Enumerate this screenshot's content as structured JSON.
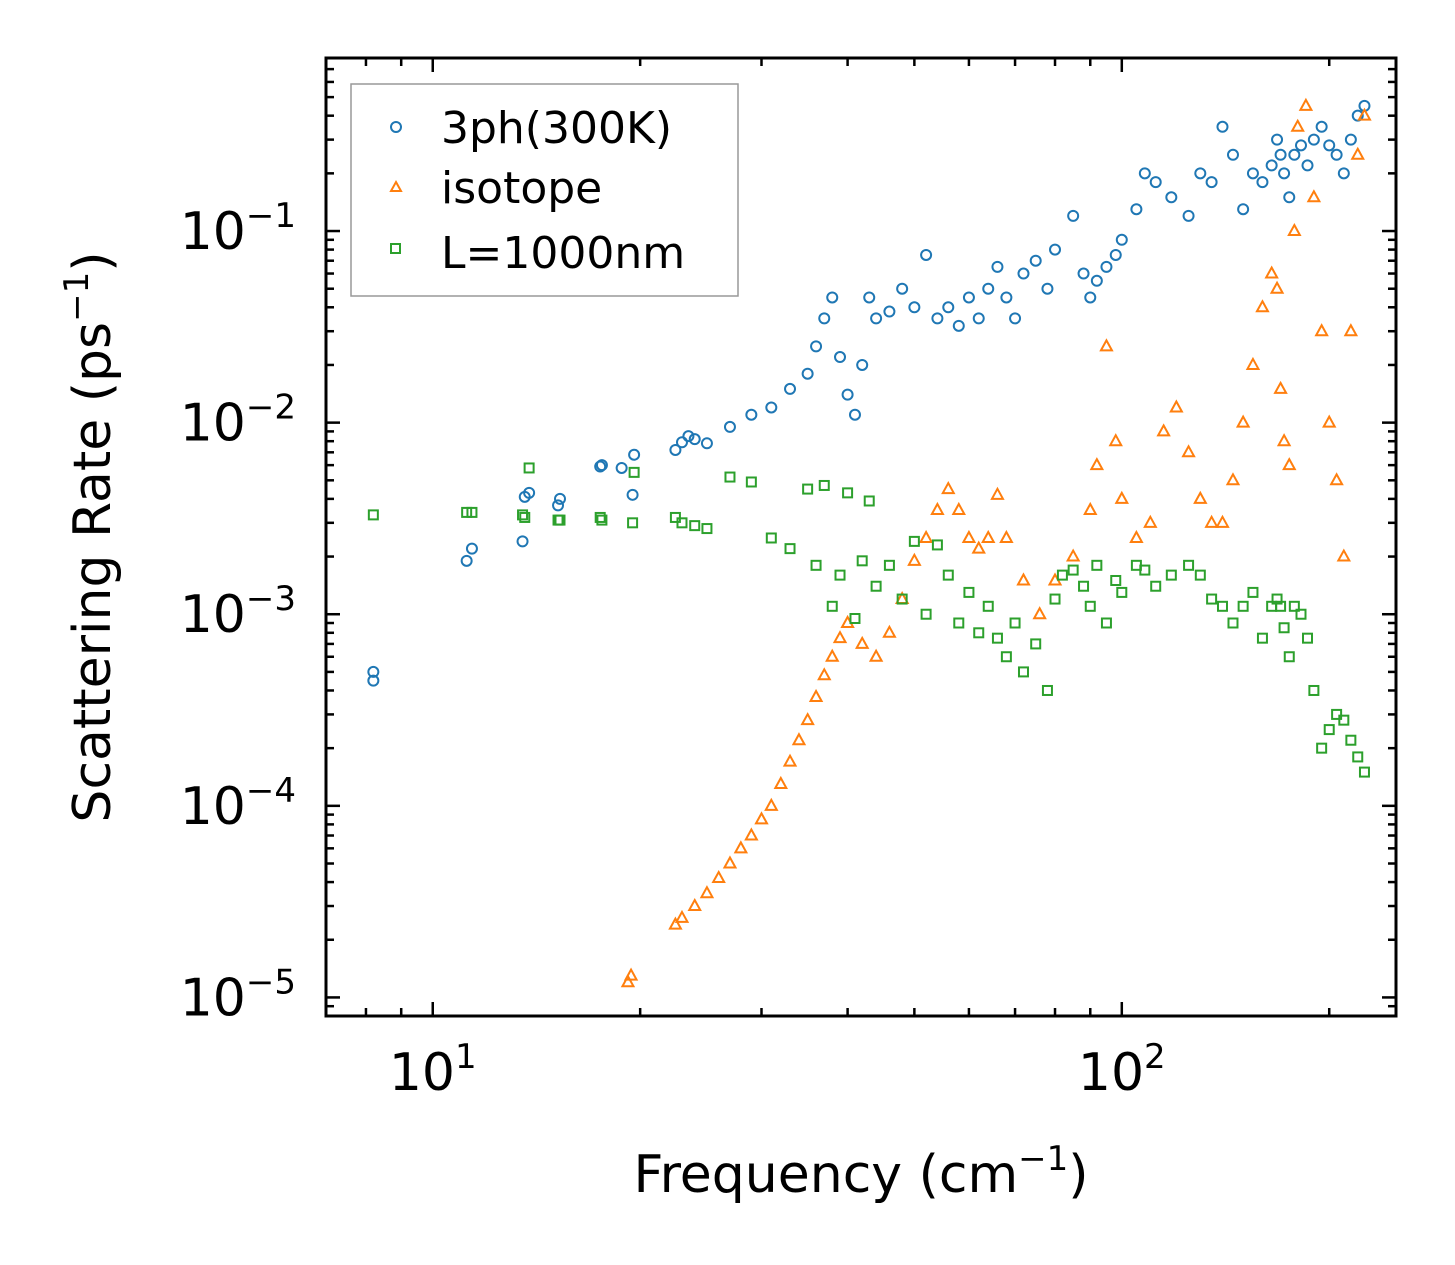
{
  "chart_data": {
    "type": "scatter",
    "xscale": "log",
    "yscale": "log",
    "xlim": [
      7,
      250
    ],
    "ylim": [
      8e-06,
      0.8
    ],
    "xlabel": {
      "text": "Frequency (cm",
      "sup": "−1",
      "close": ")"
    },
    "ylabel": {
      "text": "Scattering Rate (ps",
      "sup": "−1",
      "close": ")"
    },
    "x_ticks": [
      {
        "value": 10,
        "base": "10",
        "exp": "1"
      },
      {
        "value": 100,
        "base": "10",
        "exp": "2"
      }
    ],
    "y_ticks": [
      {
        "value": 0.1,
        "base": "10",
        "exp": "−1"
      },
      {
        "value": 0.01,
        "base": "10",
        "exp": "−2"
      },
      {
        "value": 0.001,
        "base": "10",
        "exp": "−3"
      },
      {
        "value": 0.0001,
        "base": "10",
        "exp": "−4"
      },
      {
        "value": 1e-05,
        "base": "10",
        "exp": "−5"
      }
    ],
    "legend_position": "top-left",
    "series": [
      {
        "name": "3ph(300K)",
        "marker": "circle",
        "color": "#1f77b4",
        "x": [
          8.2,
          8.2,
          11.2,
          11.4,
          13.5,
          13.6,
          13.8,
          15.2,
          15.3,
          17.5,
          17.6,
          18.8,
          19.5,
          19.6,
          22.5,
          23.0,
          23.5,
          24.0,
          25.0,
          27.0,
          29.0,
          31.0,
          33.0,
          35.0,
          36.0,
          37.0,
          38.0,
          39.0,
          40.0,
          41.0,
          42.0,
          43.0,
          44.0,
          46.0,
          48.0,
          50.0,
          52.0,
          54.0,
          56.0,
          58.0,
          60.0,
          62.0,
          64.0,
          66.0,
          68.0,
          70.0,
          72.0,
          75.0,
          78.0,
          80.0,
          85.0,
          88.0,
          90.0,
          92.0,
          95.0,
          98.0,
          100.0,
          105.0,
          108.0,
          112.0,
          118.0,
          125.0,
          130.0,
          135.0,
          140.0,
          145.0,
          150.0,
          155.0,
          160.0,
          165.0,
          168.0,
          170.0,
          172.0,
          175.0,
          178.0,
          182.0,
          186.0,
          190.0,
          195.0,
          200.0,
          205.0,
          210.0,
          215.0,
          220.0,
          225.0
        ],
        "y": [
          0.00045,
          0.0005,
          0.0019,
          0.0022,
          0.0024,
          0.0041,
          0.0043,
          0.0037,
          0.004,
          0.0059,
          0.006,
          0.0058,
          0.0042,
          0.0068,
          0.0072,
          0.0079,
          0.0085,
          0.0082,
          0.0078,
          0.0095,
          0.011,
          0.012,
          0.015,
          0.018,
          0.025,
          0.035,
          0.045,
          0.022,
          0.014,
          0.011,
          0.02,
          0.045,
          0.035,
          0.038,
          0.05,
          0.04,
          0.075,
          0.035,
          0.04,
          0.032,
          0.045,
          0.035,
          0.05,
          0.065,
          0.045,
          0.035,
          0.06,
          0.07,
          0.05,
          0.08,
          0.12,
          0.06,
          0.045,
          0.055,
          0.065,
          0.075,
          0.09,
          0.13,
          0.2,
          0.18,
          0.15,
          0.12,
          0.2,
          0.18,
          0.35,
          0.25,
          0.13,
          0.2,
          0.18,
          0.22,
          0.3,
          0.25,
          0.2,
          0.15,
          0.25,
          0.28,
          0.22,
          0.3,
          0.35,
          0.28,
          0.25,
          0.2,
          0.3,
          0.4,
          0.45
        ]
      },
      {
        "name": "isotope",
        "marker": "triangle",
        "color": "#ff7f0e",
        "x": [
          19.2,
          19.4,
          22.5,
          23.0,
          24.0,
          25.0,
          26.0,
          27.0,
          28.0,
          29.0,
          30.0,
          31.0,
          32.0,
          33.0,
          34.0,
          35.0,
          36.0,
          37.0,
          38.0,
          39.0,
          40.0,
          42.0,
          44.0,
          46.0,
          48.0,
          50.0,
          52.0,
          54.0,
          56.0,
          58.0,
          60.0,
          62.0,
          64.0,
          66.0,
          68.0,
          72.0,
          76.0,
          80.0,
          85.0,
          90.0,
          92.0,
          95.0,
          98.0,
          100.0,
          105.0,
          110.0,
          115.0,
          120.0,
          125.0,
          130.0,
          135.0,
          140.0,
          145.0,
          150.0,
          155.0,
          160.0,
          165.0,
          168.0,
          170.0,
          172.0,
          175.0,
          178.0,
          180.0,
          185.0,
          190.0,
          195.0,
          200.0,
          205.0,
          210.0,
          215.0,
          220.0,
          225.0
        ],
        "y": [
          1.2e-05,
          1.3e-05,
          2.4e-05,
          2.6e-05,
          3e-05,
          3.5e-05,
          4.2e-05,
          5e-05,
          6e-05,
          7e-05,
          8.5e-05,
          0.0001,
          0.00013,
          0.00017,
          0.00022,
          0.00028,
          0.00037,
          0.00048,
          0.0006,
          0.00075,
          0.0009,
          0.0007,
          0.0006,
          0.0008,
          0.0012,
          0.0019,
          0.0025,
          0.0035,
          0.0045,
          0.0035,
          0.0025,
          0.0022,
          0.0025,
          0.0042,
          0.0025,
          0.0015,
          0.001,
          0.0015,
          0.002,
          0.0035,
          0.006,
          0.025,
          0.008,
          0.004,
          0.0025,
          0.003,
          0.009,
          0.012,
          0.007,
          0.004,
          0.003,
          0.003,
          0.005,
          0.01,
          0.02,
          0.04,
          0.06,
          0.05,
          0.015,
          0.008,
          0.006,
          0.1,
          0.35,
          0.45,
          0.15,
          0.03,
          0.01,
          0.005,
          0.002,
          0.03,
          0.25,
          0.4
        ]
      },
      {
        "name": "L=1000nm",
        "marker": "square",
        "color": "#2ca02c",
        "x": [
          8.2,
          11.2,
          11.4,
          13.5,
          13.6,
          13.8,
          15.2,
          15.3,
          17.5,
          17.6,
          19.5,
          19.6,
          22.5,
          23.0,
          24.0,
          25.0,
          27.0,
          29.0,
          31.0,
          33.0,
          35.0,
          36.0,
          37.0,
          38.0,
          39.0,
          40.0,
          41.0,
          42.0,
          43.0,
          44.0,
          46.0,
          48.0,
          50.0,
          52.0,
          54.0,
          56.0,
          58.0,
          60.0,
          62.0,
          64.0,
          66.0,
          68.0,
          70.0,
          72.0,
          75.0,
          78.0,
          80.0,
          82.0,
          85.0,
          88.0,
          90.0,
          92.0,
          95.0,
          98.0,
          100.0,
          105.0,
          108.0,
          112.0,
          118.0,
          125.0,
          130.0,
          135.0,
          140.0,
          145.0,
          150.0,
          155.0,
          160.0,
          165.0,
          168.0,
          170.0,
          172.0,
          175.0,
          178.0,
          182.0,
          186.0,
          190.0,
          195.0,
          200.0,
          205.0,
          210.0,
          215.0,
          220.0,
          225.0
        ],
        "y": [
          0.0033,
          0.0034,
          0.0034,
          0.0033,
          0.0032,
          0.0058,
          0.0031,
          0.0031,
          0.0032,
          0.0031,
          0.003,
          0.0055,
          0.0032,
          0.003,
          0.0029,
          0.0028,
          0.0052,
          0.0049,
          0.0025,
          0.0022,
          0.0045,
          0.0018,
          0.0047,
          0.0011,
          0.0016,
          0.0043,
          0.00095,
          0.0019,
          0.0039,
          0.0014,
          0.0018,
          0.0012,
          0.0024,
          0.001,
          0.0023,
          0.0016,
          0.0009,
          0.0013,
          0.0008,
          0.0011,
          0.00075,
          0.0006,
          0.0009,
          0.0005,
          0.0007,
          0.0004,
          0.0012,
          0.0016,
          0.0017,
          0.0014,
          0.0011,
          0.0018,
          0.0009,
          0.0015,
          0.0013,
          0.0018,
          0.0017,
          0.0014,
          0.0016,
          0.0018,
          0.0016,
          0.0012,
          0.0011,
          0.0009,
          0.0011,
          0.0013,
          0.00075,
          0.0011,
          0.0012,
          0.0011,
          0.00085,
          0.0006,
          0.0011,
          0.001,
          0.00075,
          0.0004,
          0.0002,
          0.00025,
          0.0003,
          0.00028,
          0.00022,
          0.00018,
          0.00015
        ]
      }
    ]
  }
}
